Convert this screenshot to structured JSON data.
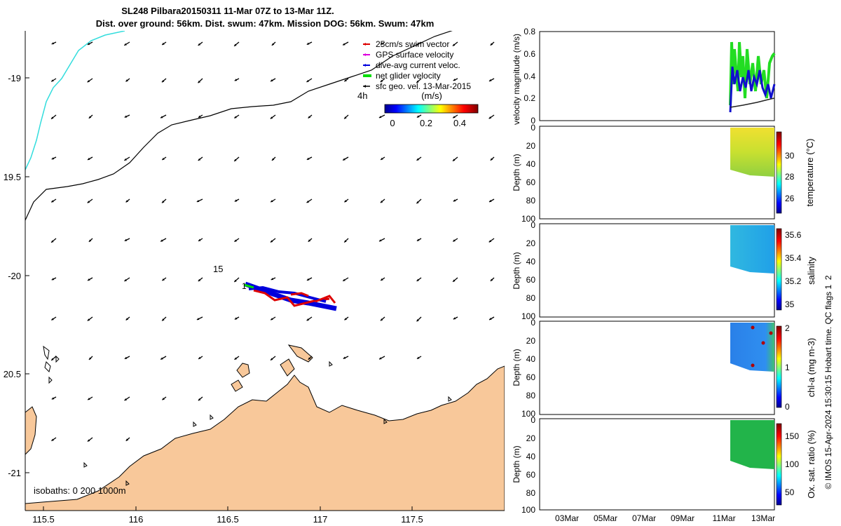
{
  "title": {
    "line1": "SL248 Pilbara20150311 11-Mar 07Z to 13-Mar 11Z.",
    "line2": "Dist. over ground: 56km. Dist. swum: 47km. Mission DOG: 56km. Swum: 47km"
  },
  "map": {
    "lon_ticks": [
      "115.5",
      "116",
      "116.5",
      "117",
      "117.5"
    ],
    "lat_ticks": [
      "-19",
      "19.5",
      "-20",
      "20.5",
      "-21"
    ],
    "isobaths_label": "isobaths: 0 200 1000m",
    "label_15": "15",
    "label_4h": "4h",
    "legend": [
      {
        "label": "25cm/s swim vector",
        "color": "#dd0000"
      },
      {
        "label": "GPS surface velocity",
        "color": "#dd00dd"
      },
      {
        "label": "dive-avg current veloc.",
        "color": "#0000dd"
      },
      {
        "label": "net glider velocity",
        "color": "#00dd00"
      },
      {
        "label": "sfc geo. vel. 13-Mar-2015",
        "color": "#000000"
      }
    ],
    "colorbar": {
      "unit": "(m/s)",
      "ticks": [
        "0",
        "0.2",
        "0.4"
      ]
    },
    "land_color": "#f8c89a",
    "cyan_line_color": "#33dddd"
  },
  "panels": {
    "velocity": {
      "ylabel": "velocity magnitude (m/s)",
      "yticks": [
        "0.8",
        "0.6",
        "0.4",
        "0.2",
        "0"
      ]
    },
    "temperature": {
      "ylabel": "Depth (m)",
      "cbar_label": "temperature (°C)",
      "cbar_ticks": [
        "30",
        "28",
        "26"
      ],
      "yticks": [
        "0",
        "20",
        "40",
        "60",
        "80",
        "100"
      ]
    },
    "salinity": {
      "ylabel": "Depth (m)",
      "cbar_label": "salinity",
      "cbar_ticks": [
        "35.6",
        "35.4",
        "35.2",
        "35"
      ],
      "yticks": [
        "0",
        "20",
        "40",
        "60",
        "80",
        "100"
      ]
    },
    "chla": {
      "ylabel": "Depth (m)",
      "cbar_label": "chl-a (mg m-3)",
      "cbar_ticks": [
        "2",
        "1",
        "0"
      ],
      "yticks": [
        "0",
        "20",
        "40",
        "60",
        "80",
        "100"
      ]
    },
    "oxygen": {
      "ylabel": "Depth (m)",
      "cbar_label": "Ox. sat. ratio (%)",
      "cbar_ticks": [
        "150",
        "100",
        "50"
      ],
      "yticks": [
        "0",
        "20",
        "40",
        "60",
        "80",
        "100"
      ]
    },
    "xticks": [
      "03Mar",
      "05Mar",
      "07Mar",
      "09Mar",
      "11Mar",
      "13Mar"
    ]
  },
  "credit": "© IMOS 15-Apr-2024 15:30:15 Hobart time. QC flags 1  2"
}
